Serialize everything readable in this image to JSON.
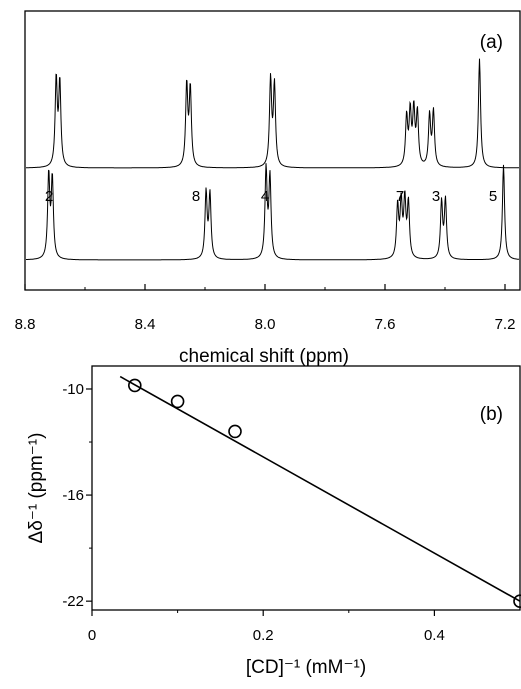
{
  "chart_data": [
    {
      "type": "line",
      "panel_label": "(a)",
      "xlabel": "chemical shift (ppm)",
      "ylabel": "",
      "xlim": [
        8.8,
        7.15
      ],
      "x_reversed": true,
      "x_ticks": [
        8.8,
        8.4,
        8.0,
        7.6,
        7.2
      ],
      "x_tick_labels": [
        "8.8",
        "8.4",
        "8.0",
        "7.6",
        "7.2"
      ],
      "grid": false,
      "peak_labels": [
        {
          "text": "2",
          "x": 8.72
        },
        {
          "text": "8",
          "x": 8.23
        },
        {
          "text": "4",
          "x": 8.0
        },
        {
          "text": "7",
          "x": 7.55
        },
        {
          "text": "3",
          "x": 7.43
        },
        {
          "text": "5",
          "x": 7.24
        }
      ],
      "series": [
        {
          "peaks": [
            {
              "center": 8.69,
              "split": 0.012,
              "h": [
                0.88,
                0.92
              ]
            },
            {
              "center": 8.255,
              "split": 0.012,
              "h": [
                0.82,
                0.86
              ]
            },
            {
              "center": 7.975,
              "split": 0.013,
              "h": [
                0.86,
                0.92
              ]
            },
            {
              "center": 7.51,
              "split": 0.012,
              "h": [
                0.56,
                0.58,
                0.56,
                0.52
              ]
            },
            {
              "center": 7.445,
              "split": 0.013,
              "h": [
                0.58,
                0.54
              ]
            },
            {
              "center": 7.285,
              "split": 0.0,
              "h": [
                1.15
              ]
            }
          ]
        },
        {
          "peaks": [
            {
              "center": 8.715,
              "split": 0.012,
              "h": [
                0.84,
                0.88
              ]
            },
            {
              "center": 8.19,
              "split": 0.013,
              "h": [
                0.68,
                0.7
              ]
            },
            {
              "center": 7.99,
              "split": 0.013,
              "h": [
                0.86,
                0.94
              ]
            },
            {
              "center": 7.54,
              "split": 0.012,
              "h": [
                0.58,
                0.6,
                0.58,
                0.55
              ]
            },
            {
              "center": 7.405,
              "split": 0.013,
              "h": [
                0.62,
                0.6
              ]
            },
            {
              "center": 7.205,
              "split": 0.0,
              "h": [
                1.0
              ]
            }
          ]
        }
      ]
    },
    {
      "type": "scatter",
      "panel_label": "(b)",
      "xlabel": "[CD]⁻¹ (mM⁻¹)",
      "ylabel": "Δδ⁻¹ (ppm⁻¹)",
      "xlim": [
        0,
        0.5
      ],
      "ylim": [
        -22.5,
        -8.7
      ],
      "x_ticks": [
        0,
        0.2,
        0.4
      ],
      "x_tick_labels": [
        "0",
        "0.2",
        "0.4"
      ],
      "y_ticks": [
        -10,
        -16,
        -22
      ],
      "y_tick_labels": [
        "-10",
        "-16",
        "-22"
      ],
      "grid": false,
      "points": [
        {
          "x": 0.05,
          "y": -9.8
        },
        {
          "x": 0.1,
          "y": -10.7
        },
        {
          "x": 0.167,
          "y": -12.4
        },
        {
          "x": 0.5,
          "y": -22.0
        }
      ],
      "fit_line": {
        "x": [
          0.033,
          0.5
        ],
        "y": [
          -9.3,
          -22.0
        ]
      }
    }
  ]
}
